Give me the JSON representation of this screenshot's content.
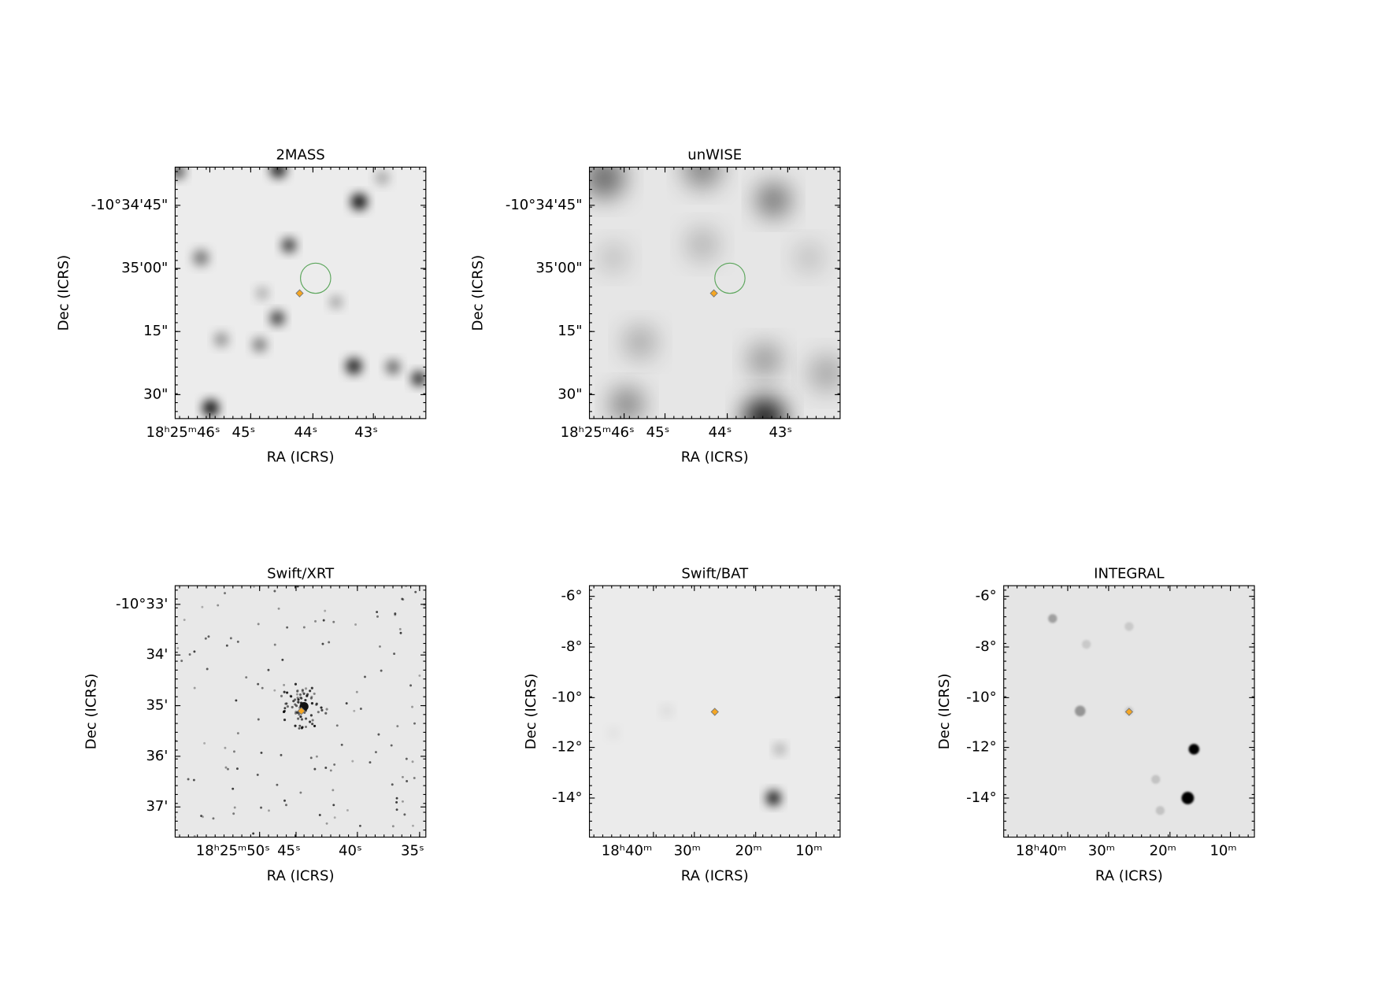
{
  "panels": [
    {
      "title": "2MASS",
      "xlabel": "RA (ICRS)",
      "ylabel": "Dec (ICRS)",
      "xticks": [
        "18ʰ25ᵐ46ˢ",
        "45ˢ",
        "44ˢ",
        "43ˢ"
      ],
      "yticks": [
        "-10°34'45\"",
        "35'00\"",
        "15\"",
        "30\""
      ]
    },
    {
      "title": "unWISE",
      "xlabel": "RA (ICRS)",
      "ylabel": "Dec (ICRS)",
      "xticks": [
        "18ʰ25ᵐ46ˢ",
        "45ˢ",
        "44ˢ",
        "43ˢ"
      ],
      "yticks": [
        "-10°34'45\"",
        "35'00\"",
        "15\"",
        "30\""
      ]
    },
    {
      "title": "Swift/XRT",
      "xlabel": "RA (ICRS)",
      "ylabel": "Dec (ICRS)",
      "xticks": [
        "18ʰ25ᵐ50ˢ",
        "45ˢ",
        "40ˢ",
        "35ˢ"
      ],
      "yticks": [
        "-10°33'",
        "34'",
        "35'",
        "36'",
        "37'"
      ]
    },
    {
      "title": "Swift/BAT",
      "xlabel": "RA (ICRS)",
      "ylabel": "Dec (ICRS)",
      "xticks": [
        "18ʰ40ᵐ",
        "30ᵐ",
        "20ᵐ",
        "10ᵐ"
      ],
      "yticks": [
        "-6°",
        "-8°",
        "-10°",
        "-12°",
        "-14°"
      ]
    },
    {
      "title": "INTEGRAL",
      "xlabel": "RA (ICRS)",
      "ylabel": "Dec (ICRS)",
      "xticks": [
        "18ʰ40ᵐ",
        "30ᵐ",
        "20ᵐ",
        "10ᵐ"
      ],
      "yticks": [
        "-6°",
        "-8°",
        "-10°",
        "-12°",
        "-14°"
      ]
    }
  ]
}
